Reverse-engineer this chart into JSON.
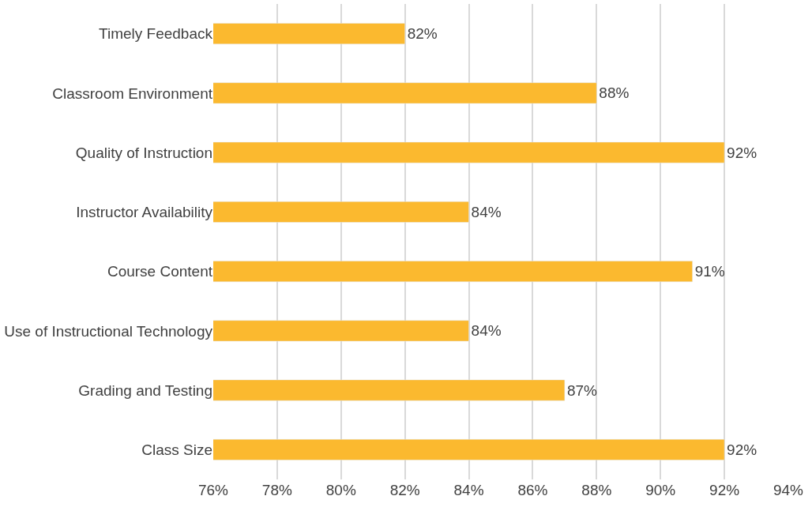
{
  "chart_data": {
    "type": "bar",
    "orientation": "horizontal",
    "categories": [
      "Timely Feedback",
      "Classroom Environment",
      "Quality of Instruction",
      "Instructor Availability",
      "Course Content",
      "Use of Instructional Technology",
      "Grading and Testing",
      "Class Size"
    ],
    "values": [
      82,
      88,
      92,
      84,
      91,
      84,
      87,
      92
    ],
    "value_labels": [
      "82%",
      "88%",
      "92%",
      "84%",
      "91%",
      "84%",
      "87%",
      "92%"
    ],
    "color": "#fbb92f",
    "xlim": [
      76,
      94
    ],
    "xticks": [
      {
        "value": 76,
        "label": "76%"
      },
      {
        "value": 78,
        "label": "78%"
      },
      {
        "value": 80,
        "label": "80%"
      },
      {
        "value": 82,
        "label": "82%"
      },
      {
        "value": 84,
        "label": "84%"
      },
      {
        "value": 86,
        "label": "86%"
      },
      {
        "value": 88,
        "label": "88%"
      },
      {
        "value": 90,
        "label": "90%"
      },
      {
        "value": 92,
        "label": "92%"
      },
      {
        "value": 94,
        "label": "94%"
      }
    ],
    "grid": "x"
  }
}
